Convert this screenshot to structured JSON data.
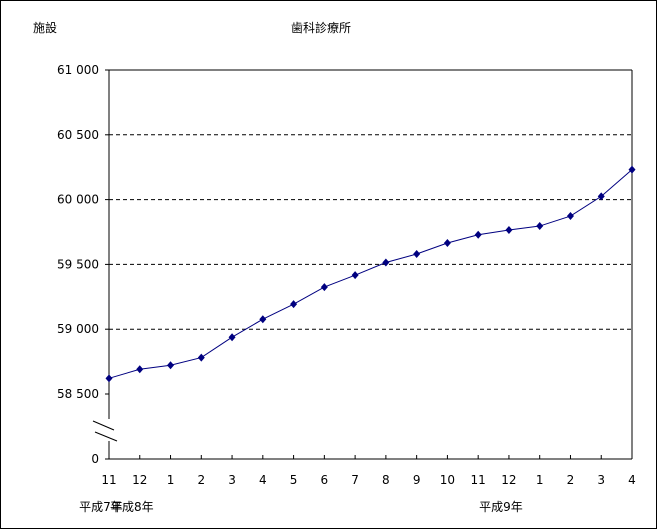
{
  "chart_data": {
    "type": "line",
    "title": "歯科診療所",
    "ylabel": "施設",
    "xlabel": "",
    "categories": [
      "11",
      "12",
      "1",
      "2",
      "3",
      "4",
      "5",
      "6",
      "7",
      "8",
      "9",
      "10",
      "11",
      "12",
      "1",
      "2",
      "3",
      "4"
    ],
    "year_labels": [
      {
        "label": "平成7年",
        "category_index": 0
      },
      {
        "label": "平成8年",
        "category_index": 1
      },
      {
        "label": "平成9年",
        "category_index": 13
      }
    ],
    "series": [
      {
        "values": [
          58621,
          58691,
          58722,
          58781,
          58938,
          59077,
          59193,
          59325,
          59417,
          59515,
          59580,
          59665,
          59729,
          59765,
          59796,
          59873,
          60025,
          60231
        ]
      }
    ],
    "yticks": [
      0,
      58500,
      59000,
      59500,
      60000,
      60500,
      61000
    ],
    "ytick_labels": [
      "0",
      "58 500",
      "59 000",
      "59 500",
      "60 000",
      "60 500",
      "61 000"
    ],
    "ylim": [
      58500,
      61000
    ],
    "axis_break": true,
    "grid": "horizontal dashed",
    "legend": "none",
    "line_color": "#000080"
  }
}
